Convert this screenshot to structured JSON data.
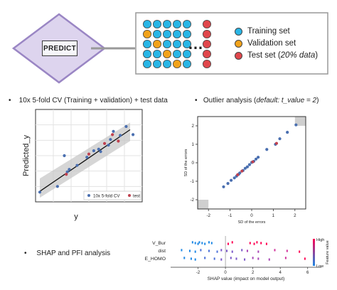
{
  "predict_label": "PREDICT",
  "ellipsis": "…",
  "legend": {
    "training": "Training set",
    "validation": "Validation set",
    "test_prefix": "Test set (",
    "test_italic": "20% data",
    "test_suffix": ")"
  },
  "colors": {
    "training": "#29b6e6",
    "validation": "#f2a31b",
    "test": "#e0474c",
    "diamond_fill": "#ddd4ee",
    "diamond_stroke": "#9a86c4"
  },
  "bullets": {
    "cv_text": "10x 5-fold CV (Training + validation) + test data",
    "outlier_prefix": "Outlier analysis (",
    "outlier_italic": "default: t_value = 2",
    "outlier_suffix": ")",
    "shap_text": "SHAP and PFI analysis",
    "bullet_char": "•"
  },
  "chart_data": [
    {
      "type": "scatter",
      "title": "",
      "xlabel": "y",
      "ylabel": "Predicted_y",
      "grid": true,
      "legend_position": "bottom-right",
      "series": [
        {
          "name": "10x 5-fold CV",
          "color": "#4a6fb0",
          "points": [
            [
              0.0,
              0.05
            ],
            [
              0.18,
              0.12
            ],
            [
              0.25,
              0.5
            ],
            [
              0.28,
              0.3
            ],
            [
              0.3,
              0.33
            ],
            [
              0.38,
              0.38
            ],
            [
              0.48,
              0.48
            ],
            [
              0.55,
              0.56
            ],
            [
              0.6,
              0.58
            ],
            [
              0.62,
              0.55
            ],
            [
              0.7,
              0.63
            ],
            [
              0.72,
              0.7
            ],
            [
              0.75,
              0.8
            ],
            [
              0.82,
              0.75
            ],
            [
              0.88,
              0.86
            ],
            [
              0.95,
              0.76
            ]
          ]
        },
        {
          "name": "test",
          "color": "#c0414f",
          "points": [
            [
              0.27,
              0.27
            ],
            [
              0.5,
              0.52
            ],
            [
              0.66,
              0.65
            ],
            [
              0.74,
              0.76
            ],
            [
              0.8,
              0.68
            ]
          ]
        }
      ],
      "fit_line": [
        [
          0.0,
          0.06
        ],
        [
          0.92,
          0.82
        ]
      ]
    },
    {
      "type": "scatter",
      "title": "",
      "xlabel": "SD of the errors",
      "ylabel": "SD of the errors",
      "xlim": [
        -2.5,
        2.5
      ],
      "ylim": [
        -2.5,
        2.5
      ],
      "xticks": [
        "-2",
        "-1",
        "0",
        "1",
        "2"
      ],
      "yticks": [
        "2",
        "1",
        "0",
        "-1",
        "-2"
      ],
      "grid": false,
      "series": [
        {
          "name": "",
          "color": "#4a6fb0",
          "points": [
            [
              -1.3,
              -1.3
            ],
            [
              -1.1,
              -1.12
            ],
            [
              -0.95,
              -0.95
            ],
            [
              -0.8,
              -0.82
            ],
            [
              -0.7,
              -0.72
            ],
            [
              -0.6,
              -0.62
            ],
            [
              -0.55,
              -0.55
            ],
            [
              -0.4,
              -0.42
            ],
            [
              -0.3,
              -0.3
            ],
            [
              -0.2,
              -0.22
            ],
            [
              -0.1,
              -0.1
            ],
            [
              0.0,
              0.02
            ],
            [
              0.1,
              0.08
            ],
            [
              0.2,
              0.2
            ],
            [
              0.3,
              0.3
            ],
            [
              0.7,
              0.72
            ],
            [
              1.1,
              1.0
            ],
            [
              1.3,
              1.3
            ],
            [
              1.65,
              1.65
            ],
            [
              2.05,
              2.05
            ]
          ]
        },
        {
          "name": "",
          "color": "#c0414f",
          "points": [
            [
              -0.65,
              -0.65
            ],
            [
              -0.45,
              -0.45
            ],
            [
              0.05,
              0.05
            ],
            [
              1.15,
              1.05
            ]
          ]
        }
      ]
    },
    {
      "type": "scatter",
      "title": "",
      "xlabel": "SHAP value (impact on model output)",
      "ylabel": "",
      "xlim": [
        -4,
        7
      ],
      "xticks": [
        "-2",
        "0",
        "2",
        "4",
        "6"
      ],
      "features": [
        "V_Bur",
        "dist",
        "E_HOMO"
      ],
      "colorbar": {
        "label": "Feature value",
        "high": "High",
        "low": "Low"
      },
      "values": [
        [
          -2.4,
          -2.2,
          -2.0,
          -1.9,
          -1.7,
          -1.5,
          -1.2,
          -1.0,
          0.2,
          0.5,
          1.8,
          2.1,
          2.3,
          2.6,
          3.0
        ],
        [
          -3.2,
          -2.6,
          -2.2,
          -1.8,
          -1.2,
          -0.6,
          -0.3,
          0.1,
          0.5,
          1.2,
          1.6,
          2.4,
          3.6,
          4.5,
          5.4
        ],
        [
          -3.0,
          -2.5,
          -2.2,
          -1.5,
          -0.8,
          -0.3,
          0.4,
          0.8,
          1.4,
          2.0,
          2.4,
          3.2,
          4.4,
          5.8
        ]
      ]
    }
  ]
}
